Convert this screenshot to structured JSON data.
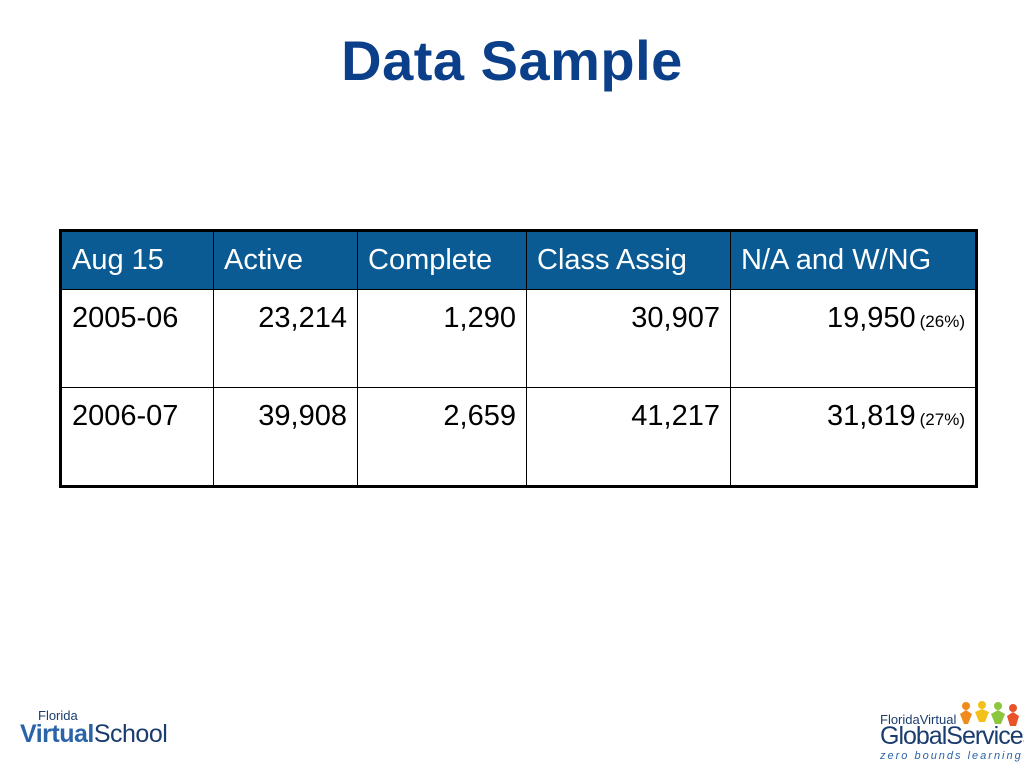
{
  "slide": {
    "title": "Data Sample"
  },
  "table": {
    "headers": [
      "Aug 15",
      "Active",
      "Complete",
      "Class Assig",
      "N/A and W/NG"
    ],
    "rows": [
      {
        "year": "2005-06",
        "active": "23,214",
        "complete": "1,290",
        "class_assig": "30,907",
        "na_wng": "19,950",
        "na_wng_pct": "(26%)"
      },
      {
        "year": "2006-07",
        "active": "39,908",
        "complete": "2,659",
        "class_assig": "41,217",
        "na_wng": "31,819",
        "na_wng_pct": "(27%)"
      }
    ]
  },
  "logos": {
    "left": {
      "top": "Florida",
      "bold": "Virtual",
      "rest": "School"
    },
    "right": {
      "top": "FloridaVirtual",
      "main": "GlobalServices",
      "tagline": "zero bounds learning"
    }
  },
  "colors": {
    "title": "#0b3f8a",
    "header_bg": "#0a5a93",
    "header_text": "#ffffff"
  }
}
